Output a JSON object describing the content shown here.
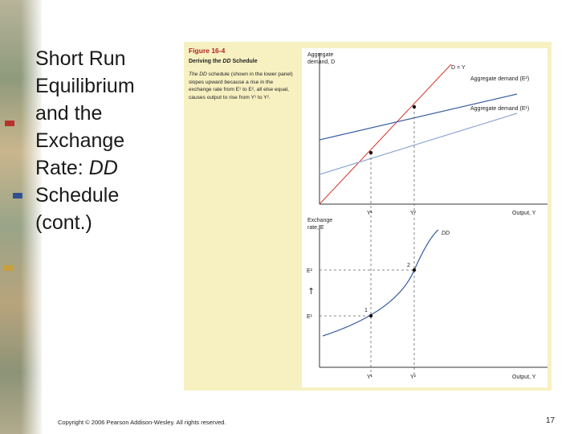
{
  "slide": {
    "title_part1": "Short Run Equilibrium and the Exchange Rate: ",
    "title_em": "DD",
    "title_part2": " Schedule (cont.)",
    "footer": "Copyright © 2006 Pearson Addison-Wesley. All rights reserved.",
    "page_number": "17"
  },
  "figure": {
    "number": "Figure 16-4",
    "subtitle_prefix": "Deriving the ",
    "subtitle_em": "DD",
    "subtitle_suffix": " Schedule",
    "caption_em": "The DD",
    "caption_rest": " schedule (shown in the lower panel) slopes upward because a rise in the exchange rate from E¹ to E², all else equal, causes output to rise from Y¹ to Y².",
    "top_panel": {
      "ylabel_line1": "Aggregate",
      "ylabel_line2": "demand, D",
      "line_45_label": "D = Y",
      "curve_upper_label": "Aggregate demand (E²)",
      "curve_lower_label": "Aggregate demand (E¹)",
      "tick_y1": "Y¹",
      "tick_y2": "Y²",
      "xlabel": "Output, Y"
    },
    "bottom_panel": {
      "ylabel_line1": "Exchange",
      "ylabel_line2": "rate, E",
      "curve_label": "DD",
      "tick_e1": "E¹",
      "tick_e2": "E²",
      "point1_label": "1",
      "point2_label": "2",
      "arrow_glyph": "↑",
      "tick_y1": "Y¹",
      "tick_y2": "Y²",
      "xlabel": "Output, Y"
    }
  },
  "colors": {
    "panel_background": "#f7f1c2",
    "figure_number": "#b0261e",
    "line_45": "#d7342c",
    "aggregate_demand_upper": "#3a5fa3",
    "aggregate_demand_lower": "#8ea8d2",
    "dd_curve": "#3a5fa3"
  }
}
